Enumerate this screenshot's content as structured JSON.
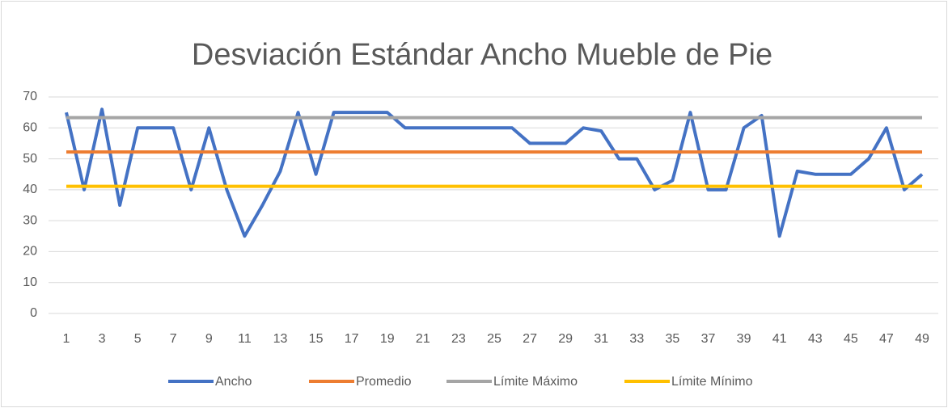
{
  "chart_data": {
    "type": "line",
    "title": "Desviación Estándar Ancho Mueble de Pie",
    "categories": [
      1,
      null,
      3,
      null,
      5,
      null,
      7,
      null,
      9,
      null,
      11,
      null,
      13,
      null,
      15,
      null,
      17,
      null,
      19,
      null,
      21,
      null,
      23,
      null,
      25,
      null,
      27,
      null,
      29,
      null,
      31,
      null,
      33,
      null,
      35,
      null,
      37,
      null,
      39,
      null,
      41,
      null,
      43,
      null,
      45,
      null,
      47,
      null,
      49
    ],
    "series": [
      {
        "name": "Ancho",
        "color": "#4472c4",
        "values": [
          65,
          40,
          66,
          35,
          60,
          60,
          60,
          40,
          60,
          40,
          25,
          35,
          46,
          65,
          45,
          65,
          65,
          65,
          65,
          60,
          60,
          60,
          60,
          60,
          60,
          60,
          55,
          55,
          55,
          60,
          59,
          50,
          50,
          40,
          43,
          65,
          40,
          40,
          60,
          64,
          25,
          46,
          45,
          45,
          45,
          50,
          60,
          40,
          45
        ]
      },
      {
        "name": "Promedio",
        "color": "#ed7d31",
        "values": [
          52.2,
          52.2,
          52.2,
          52.2,
          52.2,
          52.2,
          52.2,
          52.2,
          52.2,
          52.2,
          52.2,
          52.2,
          52.2,
          52.2,
          52.2,
          52.2,
          52.2,
          52.2,
          52.2,
          52.2,
          52.2,
          52.2,
          52.2,
          52.2,
          52.2,
          52.2,
          52.2,
          52.2,
          52.2,
          52.2,
          52.2,
          52.2,
          52.2,
          52.2,
          52.2,
          52.2,
          52.2,
          52.2,
          52.2,
          52.2,
          52.2,
          52.2,
          52.2,
          52.2,
          52.2,
          52.2,
          52.2,
          52.2,
          52.2
        ]
      },
      {
        "name": "Límite Máximo",
        "color": "#a5a5a5",
        "values": [
          63.3,
          63.3,
          63.3,
          63.3,
          63.3,
          63.3,
          63.3,
          63.3,
          63.3,
          63.3,
          63.3,
          63.3,
          63.3,
          63.3,
          63.3,
          63.3,
          63.3,
          63.3,
          63.3,
          63.3,
          63.3,
          63.3,
          63.3,
          63.3,
          63.3,
          63.3,
          63.3,
          63.3,
          63.3,
          63.3,
          63.3,
          63.3,
          63.3,
          63.3,
          63.3,
          63.3,
          63.3,
          63.3,
          63.3,
          63.3,
          63.3,
          63.3,
          63.3,
          63.3,
          63.3,
          63.3,
          63.3,
          63.3,
          63.3
        ]
      },
      {
        "name": "Límite Mínimo",
        "color": "#ffc000",
        "values": [
          41.1,
          41.1,
          41.1,
          41.1,
          41.1,
          41.1,
          41.1,
          41.1,
          41.1,
          41.1,
          41.1,
          41.1,
          41.1,
          41.1,
          41.1,
          41.1,
          41.1,
          41.1,
          41.1,
          41.1,
          41.1,
          41.1,
          41.1,
          41.1,
          41.1,
          41.1,
          41.1,
          41.1,
          41.1,
          41.1,
          41.1,
          41.1,
          41.1,
          41.1,
          41.1,
          41.1,
          41.1,
          41.1,
          41.1,
          41.1,
          41.1,
          41.1,
          41.1,
          41.1,
          41.1,
          41.1,
          41.1,
          41.1,
          41.1
        ]
      }
    ],
    "ylim": [
      0,
      70
    ],
    "yticks": [
      0,
      10,
      20,
      30,
      40,
      50,
      60,
      70
    ],
    "grid": true,
    "legend": "bottom"
  }
}
